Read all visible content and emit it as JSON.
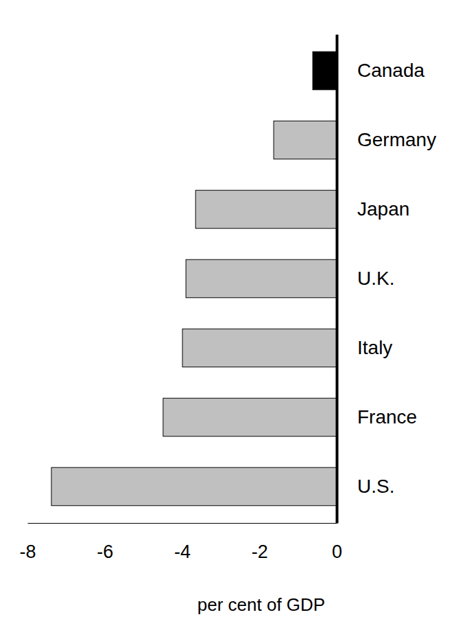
{
  "chart_data": {
    "type": "bar",
    "orientation": "horizontal",
    "categories": [
      "Canada",
      "Germany",
      "Japan",
      "U.K.",
      "Italy",
      "France",
      "U.S."
    ],
    "values": [
      -0.62,
      -1.63,
      -3.65,
      -3.9,
      -3.99,
      -4.49,
      -7.38
    ],
    "colors": [
      "#000000",
      "#c0c0c0",
      "#c0c0c0",
      "#c0c0c0",
      "#c0c0c0",
      "#c0c0c0",
      "#c0c0c0"
    ],
    "xlim": [
      -8,
      0
    ],
    "xticks": [
      -8,
      -6,
      -4,
      -2,
      0
    ],
    "x_label": "per cent of GDP",
    "grid": false
  }
}
